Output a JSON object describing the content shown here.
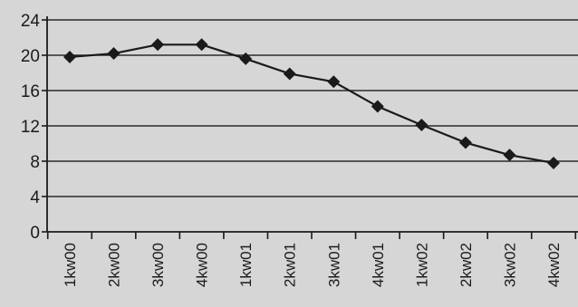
{
  "chart_data": {
    "type": "line",
    "title": "",
    "xlabel": "",
    "ylabel": "",
    "categories": [
      "1kw00",
      "2kw00",
      "3kw00",
      "4kw00",
      "1kw01",
      "2kw01",
      "3kw01",
      "4kw01",
      "1kw02",
      "2kw02",
      "3kw02",
      "4kw02"
    ],
    "series": [
      {
        "values": [
          19.8,
          20.2,
          21.2,
          21.2,
          19.6,
          17.9,
          17.0,
          14.2,
          12.1,
          10.1,
          8.7,
          7.8
        ]
      }
    ],
    "ylim": [
      0,
      24
    ],
    "yticks": [
      0,
      4,
      8,
      12,
      16,
      20,
      24
    ],
    "grid": true,
    "legend": "none",
    "line_color": "#1a1a1a",
    "marker": "diamond"
  }
}
